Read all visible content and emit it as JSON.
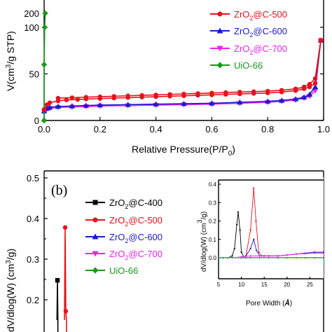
{
  "chart_data": [
    {
      "id": "a",
      "type": "line",
      "ylabel_parts": [
        "V(cm",
        "3",
        "/g STP)"
      ],
      "xlabel_parts": [
        "Relative Pressure(P/P",
        "0",
        ")"
      ],
      "top_tick": "200",
      "xlim": [
        0.0,
        1.0
      ],
      "ylim": [
        0,
        110
      ],
      "xticks": [
        "0.0",
        "0.2",
        "0.4",
        "0.6",
        "0.8",
        "1.0"
      ],
      "yticks": [
        "0",
        "50",
        "100"
      ],
      "legend_placement": "right",
      "series": [
        {
          "name_parts": [
            "ZrO",
            "2",
            "@C-500"
          ],
          "color": "#e8101a",
          "marker": "circle",
          "x": [
            0.0,
            0.01,
            0.02,
            0.05,
            0.08,
            0.12,
            0.15,
            0.2,
            0.25,
            0.3,
            0.35,
            0.4,
            0.45,
            0.5,
            0.55,
            0.6,
            0.65,
            0.7,
            0.75,
            0.8,
            0.85,
            0.9,
            0.93,
            0.95,
            0.97,
            0.99
          ],
          "y": [
            12,
            17,
            19,
            21,
            22,
            22.5,
            23,
            23.5,
            24,
            24.5,
            25,
            25.5,
            26,
            26.5,
            27,
            27.5,
            28,
            28.5,
            29,
            29.5,
            30.5,
            32,
            34,
            36,
            40,
            86
          ],
          "desorption_x": [
            0.99,
            0.97,
            0.95,
            0.93,
            0.9,
            0.85,
            0.8,
            0.75,
            0.7,
            0.65,
            0.6,
            0.55,
            0.5,
            0.45,
            0.4,
            0.35,
            0.3,
            0.25,
            0.2,
            0.15,
            0.1,
            0.05
          ],
          "desorption_y": [
            86,
            45,
            39,
            36,
            34,
            32.5,
            31.5,
            31,
            30.5,
            30,
            29.5,
            29,
            28.5,
            28,
            27.5,
            27,
            26.5,
            26,
            25.5,
            25,
            24.5,
            24
          ]
        },
        {
          "name_parts": [
            "ZrO",
            "2",
            "@C-600"
          ],
          "color": "#1a1ad0",
          "marker": "triangle-up",
          "x": [
            0.0,
            0.01,
            0.02,
            0.05,
            0.1,
            0.15,
            0.2,
            0.3,
            0.4,
            0.5,
            0.6,
            0.7,
            0.8,
            0.85,
            0.9,
            0.93,
            0.95,
            0.97,
            0.99
          ],
          "y": [
            10,
            13,
            14,
            15,
            15.5,
            16,
            16.5,
            17,
            17.5,
            18,
            18.5,
            19.5,
            20.5,
            21.5,
            23,
            25,
            28,
            36,
            86
          ],
          "desorption_x": [],
          "desorption_y": []
        },
        {
          "name_parts": [
            "ZrO",
            "2",
            "@C-700"
          ],
          "color": "#f020f0",
          "marker": "triangle-down",
          "x": [
            0.0,
            0.01,
            0.02,
            0.05,
            0.1,
            0.15,
            0.2,
            0.3,
            0.4,
            0.5,
            0.6,
            0.7,
            0.8,
            0.85,
            0.9,
            0.93,
            0.95,
            0.97,
            0.99
          ],
          "y": [
            9,
            12,
            13,
            14,
            14.5,
            15,
            15.5,
            16,
            16.5,
            17,
            17.5,
            18.5,
            19.5,
            20.5,
            22,
            24,
            26,
            32,
            86
          ],
          "desorption_x": [],
          "desorption_y": []
        },
        {
          "name_parts": [
            "UiO-66",
            "",
            ""
          ],
          "color": "#159a1a",
          "marker": "diamond",
          "x": [
            0.0,
            0.0,
            0.002,
            0.004
          ],
          "y": [
            0,
            60,
            100,
            115
          ],
          "desorption_x": [],
          "desorption_y": []
        }
      ]
    },
    {
      "id": "b",
      "type": "line",
      "panel_label": "(b)",
      "ylabel_parts": [
        "dV/dlog(W) (cm",
        "3",
        "/g)"
      ],
      "ylim": [
        0.15,
        0.5
      ],
      "yticks": [
        "0.2",
        "0.3",
        "0.4",
        "0.5"
      ],
      "legend_placement": "top-left",
      "series": [
        {
          "name_parts": [
            "ZrO",
            "2",
            "@C-400"
          ],
          "color": "#000000",
          "marker": "square",
          "x": [
            9.0,
            9.2,
            9.4
          ],
          "y": [
            0.15,
            0.248,
            0.15
          ]
        },
        {
          "name_parts": [
            "ZrO",
            "2",
            "@C-500"
          ],
          "color": "#e8101a",
          "marker": "circle",
          "x": [
            12.4,
            12.7,
            13.0,
            13.3
          ],
          "y": [
            0.15,
            0.378,
            0.172,
            0.15
          ]
        },
        {
          "name_parts": [
            "ZrO",
            "2",
            "@C-600"
          ],
          "color": "#1a1ad0",
          "marker": "triangle-up",
          "x": [],
          "y": []
        },
        {
          "name_parts": [
            "ZrO",
            "2",
            "@C-700"
          ],
          "color": "#f020f0",
          "marker": "triangle-down",
          "x": [],
          "y": []
        },
        {
          "name_parts": [
            "UiO-66",
            "",
            ""
          ],
          "color": "#159a1a",
          "marker": "diamond",
          "x": [],
          "y": []
        }
      ],
      "inset": {
        "type": "line",
        "xlabel_parts": [
          "Pore Width (",
          "Å",
          ")"
        ],
        "ylabel_parts": [
          "dV/dlog(W) (cm",
          "3",
          "/g)"
        ],
        "xlim": [
          5,
          28
        ],
        "ylim": [
          0,
          0.4
        ],
        "xticks": [
          "5",
          "10",
          "15",
          "20",
          "25"
        ],
        "yticks": [
          "0.0",
          "0.1",
          "0.2",
          "0.3",
          "0.4"
        ],
        "series": [
          {
            "color": "#000000",
            "x": [
              5,
              6,
              7,
              8,
              8.5,
              9,
              9.3,
              9.7,
              10,
              10.5,
              11,
              12,
              14,
              16,
              18,
              20,
              22,
              24,
              26,
              28
            ],
            "y": [
              0,
              0,
              0,
              0.01,
              0.05,
              0.18,
              0.248,
              0.15,
              0.03,
              0.005,
              0,
              0,
              0,
              0,
              0,
              0,
              0,
              0,
              0,
              0
            ]
          },
          {
            "color": "#e8101a",
            "x": [
              5,
              8,
              10,
              11,
              12,
              12.7,
              13.2,
              13.8,
              14.5,
              15,
              16,
              18,
              20,
              22,
              24,
              26,
              28
            ],
            "y": [
              0,
              0,
              0,
              0.01,
              0.15,
              0.378,
              0.2,
              0.03,
              0.01,
              0.01,
              0.01,
              0.01,
              0.015,
              0.02,
              0.025,
              0.03,
              0.03
            ]
          },
          {
            "color": "#1a1ad0",
            "x": [
              5,
              8,
              10,
              11,
              12,
              12.7,
              13.3,
              14,
              15,
              16,
              18,
              20,
              22,
              24,
              26,
              28
            ],
            "y": [
              0,
              0,
              0,
              0.01,
              0.05,
              0.1,
              0.04,
              0.01,
              0.01,
              0.01,
              0.01,
              0.015,
              0.02,
              0.025,
              0.03,
              0.03
            ]
          },
          {
            "color": "#f020f0",
            "x": [
              5,
              8,
              10,
              12,
              14,
              16,
              18,
              20,
              22,
              24,
              26,
              28
            ],
            "y": [
              0,
              0,
              0.005,
              0.01,
              0.01,
              0.01,
              0.01,
              0.015,
              0.02,
              0.022,
              0.025,
              0.025
            ]
          },
          {
            "color": "#159a1a",
            "x": [
              5,
              8,
              10,
              12,
              14,
              16,
              18,
              20,
              22,
              24,
              26,
              28
            ],
            "y": [
              0,
              0,
              0,
              0,
              0,
              0,
              0,
              0,
              0,
              0,
              0,
              0
            ]
          },
          {
            "color": "#00c8d8",
            "x": [
              5,
              28
            ],
            "y": [
              0.002,
              0.002
            ]
          }
        ]
      }
    }
  ]
}
